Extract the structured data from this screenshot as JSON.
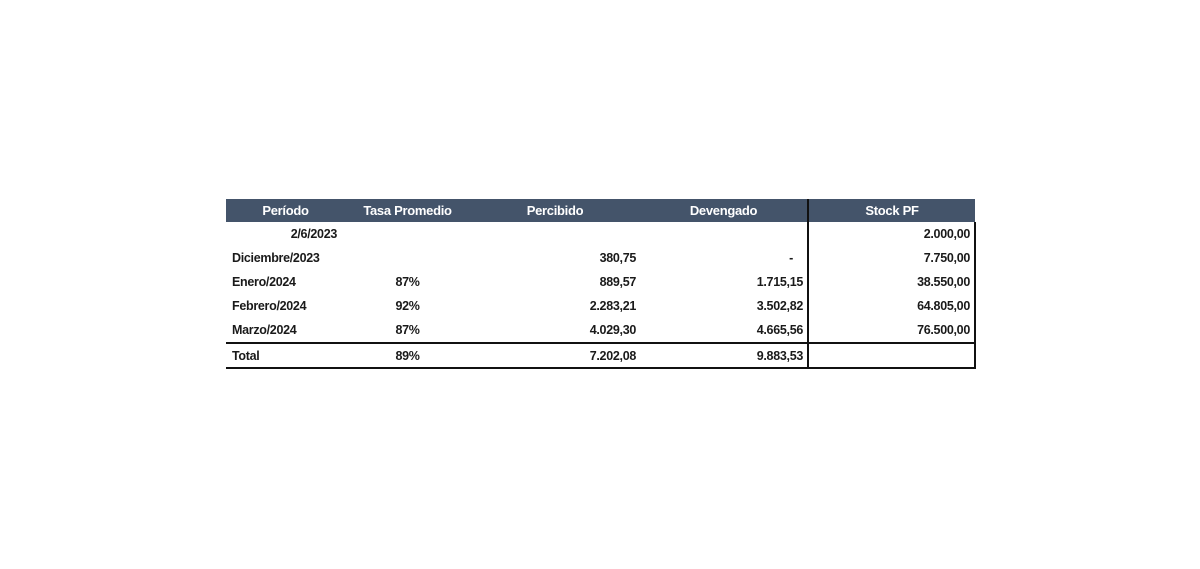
{
  "table": {
    "headers": [
      "Período",
      "Tasa Promedio",
      "Percibido",
      "Devengado",
      "Stock PF"
    ],
    "rows": [
      {
        "periodo": "2/6/2023",
        "tasa": "",
        "percibido": "",
        "devengado": "",
        "stock": "2.000,00"
      },
      {
        "periodo": "Diciembre/2023",
        "tasa": "",
        "percibido": "380,75",
        "devengado": "-",
        "stock": "7.750,00"
      },
      {
        "periodo": "Enero/2024",
        "tasa": "87%",
        "percibido": "889,57",
        "devengado": "1.715,15",
        "stock": "38.550,00"
      },
      {
        "periodo": "Febrero/2024",
        "tasa": "92%",
        "percibido": "2.283,21",
        "devengado": "3.502,82",
        "stock": "64.805,00"
      },
      {
        "periodo": "Marzo/2024",
        "tasa": "87%",
        "percibido": "4.029,30",
        "devengado": "4.665,56",
        "stock": "76.500,00"
      }
    ],
    "total": {
      "label": "Total",
      "tasa": "89%",
      "percibido": "7.202,08",
      "devengado": "9.883,53",
      "stock": ""
    }
  },
  "colors": {
    "header_bg": "#44546a",
    "header_text": "#ffffff"
  }
}
